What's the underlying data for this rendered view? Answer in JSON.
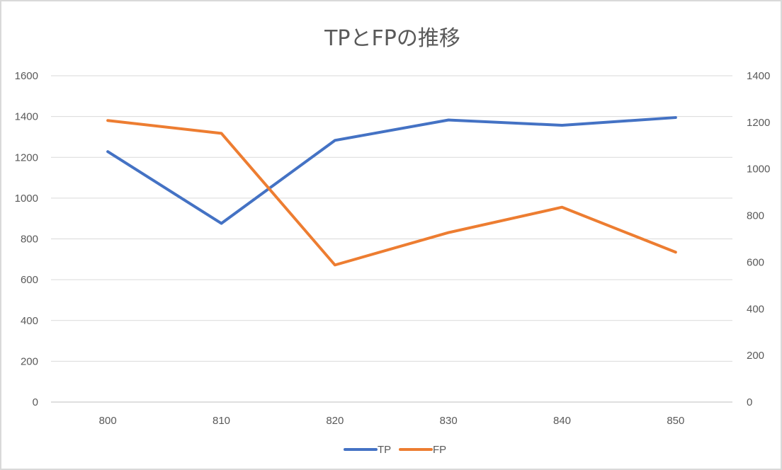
{
  "chart_data": {
    "type": "line",
    "title": "TPとFPの推移",
    "categories": [
      "800",
      "810",
      "820",
      "830",
      "840",
      "850"
    ],
    "y_left": {
      "range": [
        0,
        1600
      ],
      "ticks": [
        "0",
        "200",
        "400",
        "600",
        "800",
        "1000",
        "1200",
        "1400",
        "1600"
      ]
    },
    "y_right": {
      "range": [
        0,
        1400
      ],
      "ticks": [
        "0",
        "200",
        "400",
        "600",
        "800",
        "1000",
        "1200",
        "1400"
      ]
    },
    "grid": true,
    "legend": "bottom",
    "series": [
      {
        "name": "TP",
        "axis": "left",
        "color": "#4472c4",
        "values": [
          1228,
          876,
          1283,
          1383,
          1357,
          1395
        ]
      },
      {
        "name": "FP",
        "axis": "right",
        "color": "#ed7d31",
        "values": [
          1208,
          1153,
          588,
          727,
          836,
          643
        ]
      }
    ]
  }
}
